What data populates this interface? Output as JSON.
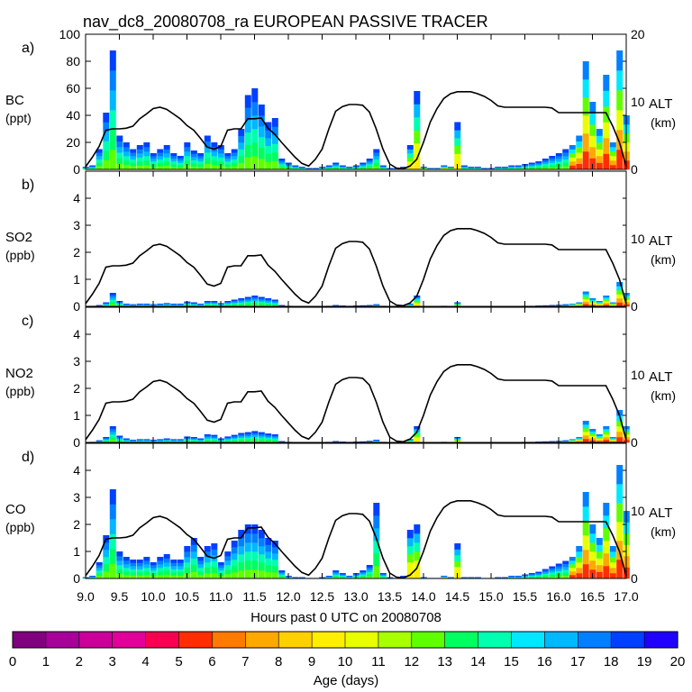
{
  "title": "nav_dc8_20080708_ra EUROPEAN PASSIVE TRACER",
  "xlabel": "Hours past 0 UTC on 20080708",
  "colorbar": {
    "label": "Age (days)",
    "min": 0,
    "max": 20,
    "tick_labels": [
      "0",
      "1",
      "2",
      "3",
      "4",
      "5",
      "6",
      "7",
      "8",
      "9",
      "10",
      "11",
      "12",
      "13",
      "14",
      "15",
      "16",
      "17",
      "18",
      "19",
      "20"
    ],
    "colors": [
      "#80007f",
      "#a8009b",
      "#c9009b",
      "#e0009a",
      "#f70052",
      "#ff2e00",
      "#ff7a00",
      "#ffa800",
      "#ffd000",
      "#ffee00",
      "#e8ff00",
      "#a8ff00",
      "#60ff00",
      "#00ff60",
      "#00ffb0",
      "#00e8ff",
      "#00b8ff",
      "#0080ff",
      "#0040ff",
      "#2000ff"
    ]
  },
  "chart_data": [
    {
      "type": "area",
      "panel_letter": "a)",
      "species": "BC",
      "units": "(ppt)",
      "ylim": [
        0,
        100
      ],
      "yticks": [
        "0",
        "20",
        "40",
        "60",
        "80",
        "100"
      ],
      "right_axis": {
        "label": "ALT",
        "units": "(km)",
        "ylim": [
          0,
          20
        ],
        "ticks": [
          "0",
          "10",
          "20"
        ]
      },
      "x_range": [
        9.0,
        17.0
      ],
      "xtick_labels": [
        "9.0",
        "9.5",
        "10.0",
        "10.5",
        "11.0",
        "11.5",
        "12.0",
        "12.5",
        "13.0",
        "13.5",
        "14.0",
        "14.5",
        "15.0",
        "15.5",
        "16.0",
        "16.5",
        "17.0"
      ],
      "x": [
        9.0,
        9.1,
        9.2,
        9.3,
        9.4,
        9.5,
        9.6,
        9.7,
        9.8,
        9.9,
        10.0,
        10.1,
        10.2,
        10.3,
        10.4,
        10.5,
        10.6,
        10.7,
        10.8,
        10.9,
        11.0,
        11.1,
        11.2,
        11.3,
        11.4,
        11.5,
        11.6,
        11.7,
        11.8,
        11.9,
        12.0,
        12.1,
        12.2,
        12.3,
        12.4,
        12.5,
        12.6,
        12.7,
        12.8,
        12.9,
        13.0,
        13.1,
        13.2,
        13.3,
        13.4,
        13.5,
        13.6,
        13.7,
        13.8,
        13.9,
        14.0,
        14.1,
        14.2,
        14.3,
        14.4,
        14.5,
        14.6,
        14.7,
        14.8,
        14.9,
        15.0,
        15.1,
        15.2,
        15.3,
        15.4,
        15.5,
        15.6,
        15.7,
        15.8,
        15.9,
        16.0,
        16.1,
        16.2,
        16.3,
        16.4,
        16.5,
        16.6,
        16.7,
        16.8,
        16.9,
        17.0
      ],
      "values": [
        2,
        3,
        15,
        42,
        88,
        25,
        20,
        15,
        18,
        20,
        12,
        15,
        18,
        12,
        10,
        20,
        14,
        12,
        25,
        20,
        18,
        12,
        15,
        30,
        55,
        60,
        48,
        35,
        38,
        8,
        5,
        3,
        2,
        1,
        1,
        2,
        3,
        5,
        3,
        2,
        3,
        5,
        8,
        15,
        3,
        1,
        1,
        2,
        18,
        58,
        2,
        1,
        1,
        3,
        2,
        35,
        3,
        2,
        2,
        1,
        1,
        2,
        2,
        3,
        3,
        4,
        5,
        6,
        8,
        10,
        12,
        15,
        18,
        25,
        80,
        50,
        30,
        70,
        20,
        88,
        40
      ],
      "alt_km": [
        0.4,
        1.8,
        3.4,
        5.8,
        6.0,
        6.0,
        6.1,
        6.4,
        7.5,
        8.2,
        9.0,
        9.2,
        8.9,
        8.2,
        7.5,
        6.5,
        5.8,
        4.6,
        3.3,
        3.0,
        3.4,
        5.8,
        6.0,
        6.0,
        7.5,
        7.5,
        7.6,
        6.1,
        5.2,
        4.0,
        2.9,
        1.8,
        0.9,
        0.5,
        1.5,
        3.0,
        6.0,
        8.6,
        9.3,
        9.6,
        9.6,
        9.5,
        8.5,
        6.0,
        3.0,
        0.8,
        0.2,
        0.1,
        0.5,
        1.5,
        4.0,
        7.0,
        9.0,
        10.5,
        11.2,
        11.5,
        11.5,
        11.5,
        11.2,
        10.8,
        10.2,
        9.4,
        9.2,
        9.2,
        9.2,
        9.2,
        9.2,
        9.2,
        9.2,
        9.1,
        8.4,
        8.4,
        8.4,
        8.4,
        8.4,
        8.4,
        8.4,
        8.4,
        6.4,
        4.0,
        0.4
      ]
    },
    {
      "type": "area",
      "panel_letter": "b)",
      "species": "SO2",
      "units": "(ppb)",
      "ylim": [
        0,
        5
      ],
      "yticks": [
        "0",
        "1",
        "2",
        "3",
        "4"
      ],
      "right_axis": {
        "label": "ALT",
        "units": "(km)",
        "ylim": [
          0,
          20
        ],
        "ticks": [
          "0",
          "10"
        ]
      },
      "x_range": [
        9.0,
        17.0
      ],
      "x": [
        9.0,
        9.1,
        9.2,
        9.3,
        9.4,
        9.5,
        9.6,
        9.7,
        9.8,
        9.9,
        10.0,
        10.1,
        10.2,
        10.3,
        10.4,
        10.5,
        10.6,
        10.7,
        10.8,
        10.9,
        11.0,
        11.1,
        11.2,
        11.3,
        11.4,
        11.5,
        11.6,
        11.7,
        11.8,
        11.9,
        12.0,
        12.1,
        12.2,
        12.3,
        12.4,
        12.5,
        12.6,
        12.7,
        12.8,
        12.9,
        13.0,
        13.1,
        13.2,
        13.3,
        13.4,
        13.5,
        13.6,
        13.7,
        13.8,
        13.9,
        14.0,
        14.1,
        14.2,
        14.3,
        14.4,
        14.5,
        14.6,
        14.7,
        14.8,
        14.9,
        15.0,
        15.1,
        15.2,
        15.3,
        15.4,
        15.5,
        15.6,
        15.7,
        15.8,
        15.9,
        16.0,
        16.1,
        16.2,
        16.3,
        16.4,
        16.5,
        16.6,
        16.7,
        16.8,
        16.9,
        17.0
      ],
      "values": [
        0,
        0.02,
        0.05,
        0.15,
        0.5,
        0.2,
        0.1,
        0.08,
        0.1,
        0.1,
        0.08,
        0.1,
        0.12,
        0.1,
        0.1,
        0.18,
        0.15,
        0.1,
        0.2,
        0.2,
        0.12,
        0.2,
        0.25,
        0.3,
        0.35,
        0.4,
        0.35,
        0.3,
        0.25,
        0.05,
        0.02,
        0.01,
        0.01,
        0,
        0,
        0.01,
        0.02,
        0.05,
        0.03,
        0.02,
        0.03,
        0.04,
        0.05,
        0.08,
        0.02,
        0,
        0,
        0.01,
        0.1,
        0.4,
        0.01,
        0,
        0,
        0.02,
        0.01,
        0.15,
        0.01,
        0.01,
        0.01,
        0,
        0,
        0.01,
        0.01,
        0.01,
        0.01,
        0.02,
        0.02,
        0.03,
        0.04,
        0.05,
        0.06,
        0.08,
        0.1,
        0.15,
        0.55,
        0.3,
        0.2,
        0.4,
        0.15,
        0.9,
        0.5
      ],
      "alt_km": [
        0.4,
        1.8,
        3.4,
        5.8,
        6.0,
        6.0,
        6.1,
        6.4,
        7.5,
        8.2,
        9.0,
        9.2,
        8.9,
        8.2,
        7.5,
        6.5,
        5.8,
        4.6,
        3.3,
        3.0,
        3.4,
        5.8,
        6.0,
        6.0,
        7.5,
        7.5,
        7.6,
        6.1,
        5.2,
        4.0,
        2.9,
        1.8,
        0.9,
        0.5,
        1.5,
        3.0,
        6.0,
        8.6,
        9.3,
        9.6,
        9.6,
        9.5,
        8.5,
        6.0,
        3.0,
        0.8,
        0.2,
        0.1,
        0.5,
        1.5,
        4.0,
        7.0,
        9.0,
        10.5,
        11.2,
        11.5,
        11.5,
        11.5,
        11.2,
        10.8,
        10.2,
        9.4,
        9.2,
        9.2,
        9.2,
        9.2,
        9.2,
        9.2,
        9.2,
        9.1,
        8.4,
        8.4,
        8.4,
        8.4,
        8.4,
        8.4,
        8.4,
        8.4,
        6.4,
        4.0,
        0.4
      ]
    },
    {
      "type": "area",
      "panel_letter": "c)",
      "species": "NO2",
      "units": "(ppb)",
      "ylim": [
        0,
        5
      ],
      "yticks": [
        "0",
        "1",
        "2",
        "3",
        "4"
      ],
      "right_axis": {
        "label": "ALT",
        "units": "(km)",
        "ylim": [
          0,
          20
        ],
        "ticks": [
          "0",
          "10"
        ]
      },
      "x_range": [
        9.0,
        17.0
      ],
      "x": [
        9.0,
        9.1,
        9.2,
        9.3,
        9.4,
        9.5,
        9.6,
        9.7,
        9.8,
        9.9,
        10.0,
        10.1,
        10.2,
        10.3,
        10.4,
        10.5,
        10.6,
        10.7,
        10.8,
        10.9,
        11.0,
        11.1,
        11.2,
        11.3,
        11.4,
        11.5,
        11.6,
        11.7,
        11.8,
        11.9,
        12.0,
        12.1,
        12.2,
        12.3,
        12.4,
        12.5,
        12.6,
        12.7,
        12.8,
        12.9,
        13.0,
        13.1,
        13.2,
        13.3,
        13.4,
        13.5,
        13.6,
        13.7,
        13.8,
        13.9,
        14.0,
        14.1,
        14.2,
        14.3,
        14.4,
        14.5,
        14.6,
        14.7,
        14.8,
        14.9,
        15.0,
        15.1,
        15.2,
        15.3,
        15.4,
        15.5,
        15.6,
        15.7,
        15.8,
        15.9,
        16.0,
        16.1,
        16.2,
        16.3,
        16.4,
        16.5,
        16.6,
        16.7,
        16.8,
        16.9,
        17.0
      ],
      "values": [
        0,
        0.02,
        0.08,
        0.2,
        0.6,
        0.25,
        0.15,
        0.1,
        0.12,
        0.12,
        0.1,
        0.12,
        0.15,
        0.12,
        0.12,
        0.22,
        0.2,
        0.15,
        0.3,
        0.28,
        0.15,
        0.22,
        0.28,
        0.35,
        0.38,
        0.42,
        0.38,
        0.33,
        0.3,
        0.05,
        0.02,
        0.01,
        0.01,
        0,
        0,
        0.01,
        0.02,
        0.05,
        0.03,
        0.02,
        0.03,
        0.04,
        0.06,
        0.1,
        0.02,
        0,
        0,
        0.01,
        0.12,
        0.6,
        0.01,
        0,
        0,
        0.02,
        0.01,
        0.2,
        0.01,
        0.01,
        0.01,
        0,
        0,
        0.01,
        0.01,
        0.01,
        0.01,
        0.02,
        0.02,
        0.03,
        0.04,
        0.05,
        0.06,
        0.08,
        0.12,
        0.2,
        0.8,
        0.5,
        0.3,
        0.6,
        0.2,
        1.2,
        0.6
      ],
      "alt_km": [
        0.4,
        1.8,
        3.4,
        5.8,
        6.0,
        6.0,
        6.1,
        6.4,
        7.5,
        8.2,
        9.0,
        9.2,
        8.9,
        8.2,
        7.5,
        6.5,
        5.8,
        4.6,
        3.3,
        3.0,
        3.4,
        5.8,
        6.0,
        6.0,
        7.5,
        7.5,
        7.6,
        6.1,
        5.2,
        4.0,
        2.9,
        1.8,
        0.9,
        0.5,
        1.5,
        3.0,
        6.0,
        8.6,
        9.3,
        9.6,
        9.6,
        9.5,
        8.5,
        6.0,
        3.0,
        0.8,
        0.2,
        0.1,
        0.5,
        1.5,
        4.0,
        7.0,
        9.0,
        10.5,
        11.2,
        11.5,
        11.5,
        11.5,
        11.2,
        10.8,
        10.2,
        9.4,
        9.2,
        9.2,
        9.2,
        9.2,
        9.2,
        9.2,
        9.2,
        9.1,
        8.4,
        8.4,
        8.4,
        8.4,
        8.4,
        8.4,
        8.4,
        8.4,
        6.4,
        4.0,
        0.4
      ]
    },
    {
      "type": "area",
      "panel_letter": "d)",
      "species": "CO",
      "units": "(ppb)",
      "ylim": [
        0,
        5
      ],
      "yticks": [
        "0",
        "1",
        "2",
        "3",
        "4"
      ],
      "right_axis": {
        "label": "ALT",
        "units": "(km)",
        "ylim": [
          0,
          20
        ],
        "ticks": [
          "0",
          "10"
        ]
      },
      "x_range": [
        9.0,
        17.0
      ],
      "x": [
        9.0,
        9.1,
        9.2,
        9.3,
        9.4,
        9.5,
        9.6,
        9.7,
        9.8,
        9.9,
        10.0,
        10.1,
        10.2,
        10.3,
        10.4,
        10.5,
        10.6,
        10.7,
        10.8,
        10.9,
        11.0,
        11.1,
        11.2,
        11.3,
        11.4,
        11.5,
        11.6,
        11.7,
        11.8,
        11.9,
        12.0,
        12.1,
        12.2,
        12.3,
        12.4,
        12.5,
        12.6,
        12.7,
        12.8,
        12.9,
        13.0,
        13.1,
        13.2,
        13.3,
        13.4,
        13.5,
        13.6,
        13.7,
        13.8,
        13.9,
        14.0,
        14.1,
        14.2,
        14.3,
        14.4,
        14.5,
        14.6,
        14.7,
        14.8,
        14.9,
        15.0,
        15.1,
        15.2,
        15.3,
        15.4,
        15.5,
        15.6,
        15.7,
        15.8,
        15.9,
        16.0,
        16.1,
        16.2,
        16.3,
        16.4,
        16.5,
        16.6,
        16.7,
        16.8,
        16.9,
        17.0
      ],
      "values": [
        0.05,
        0.1,
        0.6,
        1.6,
        3.3,
        1.0,
        0.8,
        0.7,
        0.7,
        0.8,
        0.6,
        0.8,
        0.9,
        0.7,
        0.7,
        1.2,
        1.5,
        0.8,
        1.2,
        1.3,
        0.6,
        1.0,
        1.4,
        1.8,
        2.0,
        2.0,
        1.8,
        1.5,
        1.4,
        0.3,
        0.1,
        0.05,
        0.05,
        0.02,
        0.02,
        0.05,
        0.1,
        0.3,
        0.2,
        0.1,
        0.2,
        0.3,
        0.5,
        2.8,
        0.2,
        0.05,
        0.02,
        0.1,
        1.8,
        2.0,
        0.05,
        0.02,
        0.02,
        0.1,
        0.05,
        1.3,
        0.05,
        0.05,
        0.05,
        0.02,
        0.02,
        0.05,
        0.05,
        0.1,
        0.1,
        0.15,
        0.2,
        0.25,
        0.35,
        0.45,
        0.55,
        0.65,
        0.8,
        1.2,
        3.2,
        2.0,
        1.5,
        2.8,
        1.2,
        4.2,
        2.5
      ],
      "alt_km": [
        0.4,
        1.8,
        3.4,
        5.8,
        6.0,
        6.0,
        6.1,
        6.4,
        7.5,
        8.2,
        9.0,
        9.2,
        8.9,
        8.2,
        7.5,
        6.5,
        5.8,
        4.6,
        3.3,
        3.0,
        3.4,
        5.8,
        6.0,
        6.0,
        7.5,
        7.5,
        7.6,
        6.1,
        5.2,
        4.0,
        2.9,
        1.8,
        0.9,
        0.5,
        1.5,
        3.0,
        6.0,
        8.6,
        9.3,
        9.6,
        9.6,
        9.5,
        8.5,
        6.0,
        3.0,
        0.8,
        0.2,
        0.1,
        0.5,
        1.5,
        4.0,
        7.0,
        9.0,
        10.5,
        11.2,
        11.5,
        11.5,
        11.5,
        11.2,
        10.8,
        10.2,
        9.4,
        9.2,
        9.2,
        9.2,
        9.2,
        9.2,
        9.2,
        9.2,
        9.1,
        8.4,
        8.4,
        8.4,
        8.4,
        8.4,
        8.4,
        8.4,
        8.4,
        6.4,
        4.0,
        0.4
      ]
    }
  ]
}
